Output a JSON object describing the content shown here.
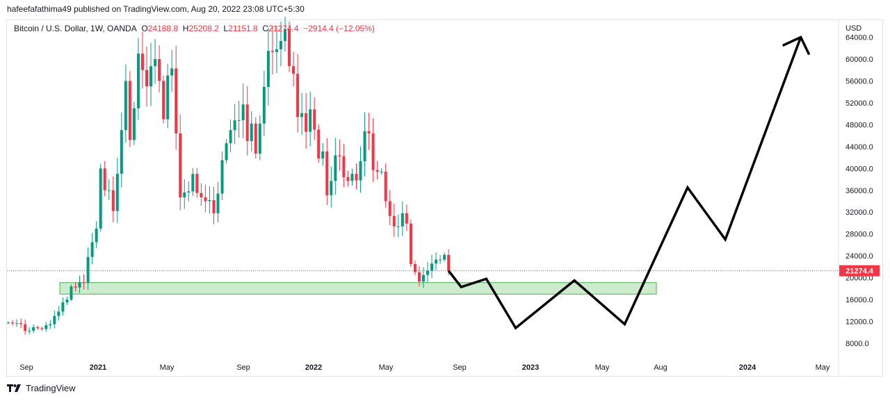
{
  "header": {
    "published": "hafeefafathima49 published on TradingView.com, Aug 20, 2022 23:08 UTC+5:30"
  },
  "legend": {
    "symbol": "Bitcoin / U.S. Dollar, 1W, OANDA",
    "o_label": "O",
    "o": "24188.8",
    "h_label": "H",
    "h": "25208.2",
    "l_label": "L",
    "l": "21151.8",
    "c_label": "C",
    "c": "21274.4",
    "change": "−2914.4 (−12.05%)"
  },
  "footer": {
    "brand": "TradingView"
  },
  "colors": {
    "up": "#089981",
    "down": "#f23645",
    "zone": "#cdeccd",
    "zone_border": "#4caf50",
    "projection": "#000000"
  },
  "chart_data": {
    "type": "candlestick",
    "title": "Bitcoin / U.S. Dollar, 1W, OANDA",
    "currency": "USD",
    "last_price": "21274.4",
    "y_ticks": [
      "8000.0",
      "12000.0",
      "16000.0",
      "20000.0",
      "24000.0",
      "28000.0",
      "32000.0",
      "36000.0",
      "40000.0",
      "44000.0",
      "48000.0",
      "52000.0",
      "56000.0",
      "60000.0",
      "64000.0"
    ],
    "x_ticks": [
      "Sep",
      "2021",
      "May",
      "Sep",
      "2022",
      "May",
      "Sep",
      "2023",
      "May",
      "Aug",
      "2024",
      "May"
    ],
    "ylim": [
      8000,
      64000
    ],
    "weekly_closes": [
      11800,
      11650,
      11700,
      11500,
      10250,
      10300,
      10950,
      10750,
      10600,
      11300,
      11500,
      13000,
      13800,
      15500,
      16000,
      18400,
      18200,
      19200,
      19100,
      23800,
      26500,
      29000,
      40000,
      36000,
      36000,
      32200,
      39000,
      47000,
      56000,
      45200,
      51000,
      61000,
      58000,
      55000,
      58700,
      60000,
      56000,
      49000,
      57000,
      58300,
      46400,
      34700,
      35600,
      35800,
      39000,
      35500,
      34700,
      34000,
      34200,
      31800,
      35400,
      41500,
      44600,
      47000,
      48800,
      48800,
      51700,
      45000,
      48200,
      42700,
      48200,
      54900,
      61500,
      61300,
      61800,
      63300,
      65500,
      58700,
      57300,
      49400,
      50100,
      46700,
      50800,
      47100,
      41800,
      43100,
      35100,
      37700,
      42400,
      42200,
      38400,
      37700,
      39000,
      37800,
      41300,
      46800,
      46400,
      39700,
      39400,
      39400,
      34000,
      31300,
      29400,
      29400,
      31800,
      29900,
      22500,
      21000,
      19300,
      20500,
      21300,
      22600,
      23300,
      23300,
      24188.8,
      21274.4
    ],
    "support_zone": [
      17000,
      19100
    ],
    "projection_path": [
      [
        0,
        21274
      ],
      [
        3,
        18300
      ],
      [
        9,
        19800
      ],
      [
        16,
        10800
      ],
      [
        30,
        19500
      ],
      [
        42,
        11500
      ],
      [
        57,
        36500
      ],
      [
        66,
        27000
      ],
      [
        84,
        64000
      ]
    ]
  }
}
